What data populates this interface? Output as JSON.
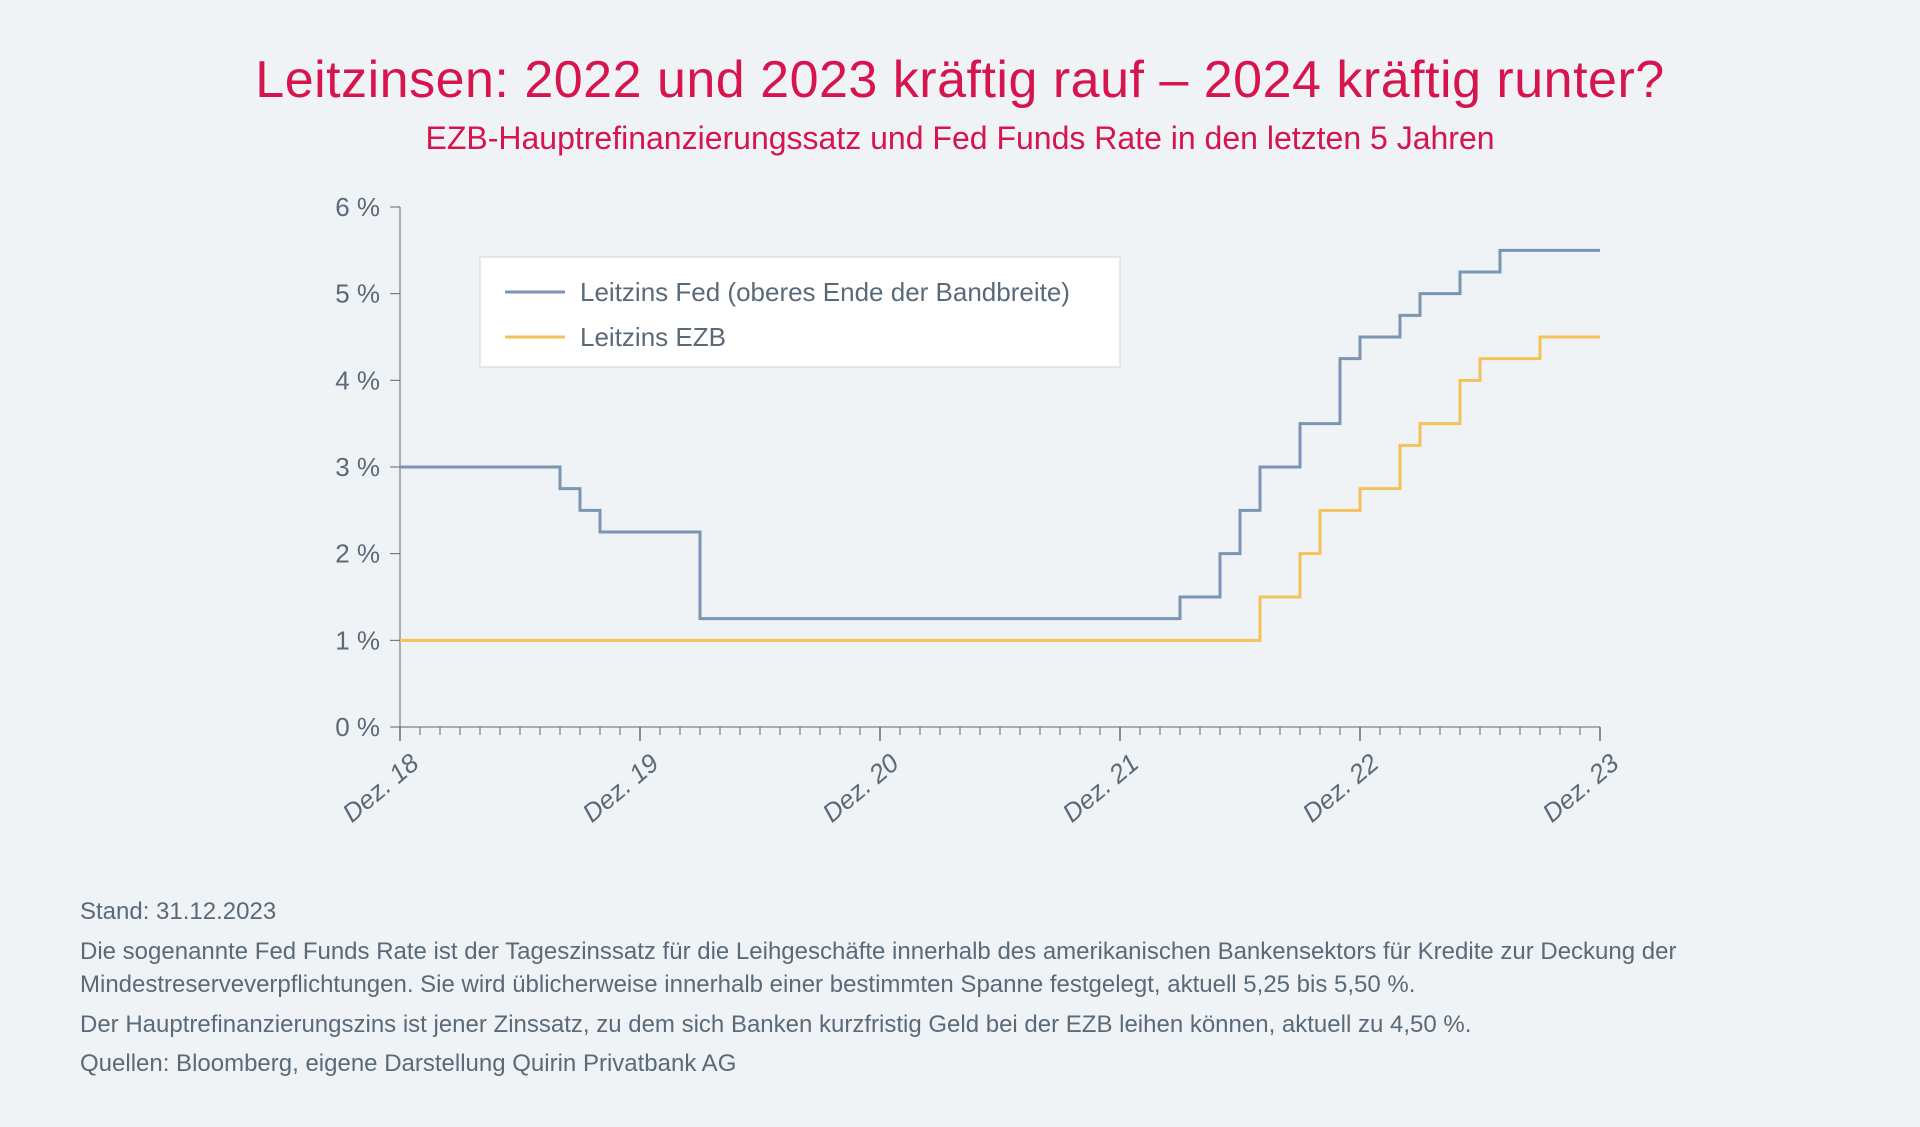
{
  "title": "Leitzinsen: 2022 und 2023 kräftig rauf – 2024 kräftig runter?",
  "subtitle": "EZB-Hauptrefinanzierungssatz und Fed Funds Rate in den letzten 5 Jahren",
  "chart": {
    "type": "step-line",
    "background_color": "#eff3f6",
    "axis_color": "#5a6a78",
    "tick_fontsize": 26,
    "y": {
      "min": 0,
      "max": 6,
      "step": 1,
      "labels": [
        "0 %",
        "1 %",
        "2 %",
        "3 %",
        "4 %",
        "5 %",
        "6 %"
      ]
    },
    "x": {
      "min": 0,
      "max": 60,
      "major_ticks": [
        0,
        12,
        24,
        36,
        48,
        60
      ],
      "major_labels": [
        "Dez. 18",
        "Dez. 19",
        "Dez. 20",
        "Dez. 21",
        "Dez. 22",
        "Dez. 23"
      ]
    },
    "legend": {
      "box_fill": "#ffffff",
      "box_stroke": "#cfd6dd",
      "items": [
        {
          "label": "Leitzins Fed (oberes Ende der Bandbreite)",
          "color": "#7b95b3"
        },
        {
          "label": "Leitzins EZB",
          "color": "#f4c15a"
        }
      ]
    },
    "series": [
      {
        "name": "fed",
        "color": "#7b95b3",
        "line_width": 3,
        "points": [
          [
            0,
            3.0
          ],
          [
            8,
            2.75
          ],
          [
            9,
            2.5
          ],
          [
            10,
            2.25
          ],
          [
            15,
            1.25
          ],
          [
            39,
            1.5
          ],
          [
            41,
            2.0
          ],
          [
            42,
            2.5
          ],
          [
            43,
            3.0
          ],
          [
            45,
            3.5
          ],
          [
            47,
            4.25
          ],
          [
            48,
            4.5
          ],
          [
            50,
            4.75
          ],
          [
            51,
            5.0
          ],
          [
            53,
            5.25
          ],
          [
            55,
            5.5
          ],
          [
            60,
            5.5
          ]
        ]
      },
      {
        "name": "ezb",
        "color": "#f4c15a",
        "line_width": 3,
        "points": [
          [
            0,
            1.0
          ],
          [
            43,
            1.5
          ],
          [
            45,
            2.0
          ],
          [
            46,
            2.5
          ],
          [
            48,
            2.75
          ],
          [
            50,
            3.25
          ],
          [
            51,
            3.5
          ],
          [
            53,
            4.0
          ],
          [
            54,
            4.25
          ],
          [
            57,
            4.5
          ],
          [
            60,
            4.5
          ]
        ]
      }
    ]
  },
  "footer": {
    "date_line": "Stand: 31.12.2023",
    "para1": "Die sogenannte Fed Funds Rate ist der Tageszinssatz für die Leihgeschäfte innerhalb des amerikanischen Bankensektors für Kredite zur Deckung der Mindestreserveverpflichtungen. Sie wird üblicherweise innerhalb einer bestimmten Spanne festgelegt, aktuell 5,25 bis 5,50 %.",
    "para2": "Der Hauptrefinanzierungszins ist jener Zinssatz, zu dem sich Banken kurzfristig Geld bei der EZB leihen können, aktuell zu 4,50 %.",
    "para3": "Quellen: Bloomberg, eigene Darstellung Quirin Privatbank AG"
  }
}
